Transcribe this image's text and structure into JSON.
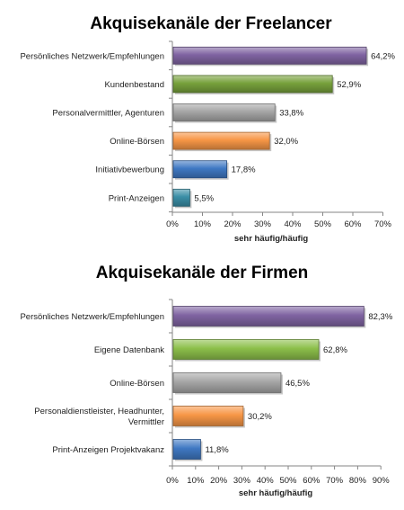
{
  "chart_data": [
    {
      "type": "bar",
      "orientation": "horizontal",
      "title": "Akquisekanäle der Freelancer",
      "xlabel": "sehr häufig/häufig",
      "xlim": [
        0,
        70
      ],
      "ticks": [
        "0%",
        "10%",
        "20%",
        "30%",
        "40%",
        "50%",
        "60%",
        "70%"
      ],
      "grid": false,
      "categories": [
        "Persönliches Netzwerk/Empfehlungen",
        "Kundenbestand",
        "Personalvermittler, Agenturen",
        "Online-Börsen",
        "Initiativbewerbung",
        "Print-Anzeigen"
      ],
      "values": [
        64.2,
        52.9,
        33.8,
        32.0,
        17.8,
        5.5
      ],
      "value_labels": [
        "64,2%",
        "52,9%",
        "33,8%",
        "32,0%",
        "17,8%",
        "5,5%"
      ],
      "colors": [
        "#8064a2",
        "#77a13c",
        "#a6a6a6",
        "#f79646",
        "#3f78c3",
        "#3a8ea6"
      ]
    },
    {
      "type": "bar",
      "orientation": "horizontal",
      "title": "Akquisekanäle der Firmen",
      "xlabel": "sehr häufig/häufig",
      "xlim": [
        0,
        90
      ],
      "ticks": [
        "0%",
        "10%",
        "20%",
        "30%",
        "40%",
        "50%",
        "60%",
        "70%",
        "80%",
        "90%"
      ],
      "grid": false,
      "categories": [
        "Persönliches Netzwerk/Empfehlungen",
        "Eigene Datenbank",
        "Online-Börsen",
        "Personaldienstleister, Headhunter, Vermittler",
        "Print-Anzeigen Projektvakanz"
      ],
      "category_lines": [
        [
          "Persönliches Netzwerk/Empfehlungen"
        ],
        [
          "Eigene Datenbank"
        ],
        [
          "Online-Börsen"
        ],
        [
          "Personaldienstleister, Headhunter,",
          "Vermittler"
        ],
        [
          "Print-Anzeigen Projektvakanz"
        ]
      ],
      "values": [
        82.3,
        62.8,
        46.5,
        30.2,
        11.8
      ],
      "value_labels": [
        "82,3%",
        "62,8%",
        "46,5%",
        "30,2%",
        "11,8%"
      ],
      "colors": [
        "#8064a2",
        "#8cbf4a",
        "#a6a6a6",
        "#f79646",
        "#3f78c3"
      ]
    }
  ]
}
